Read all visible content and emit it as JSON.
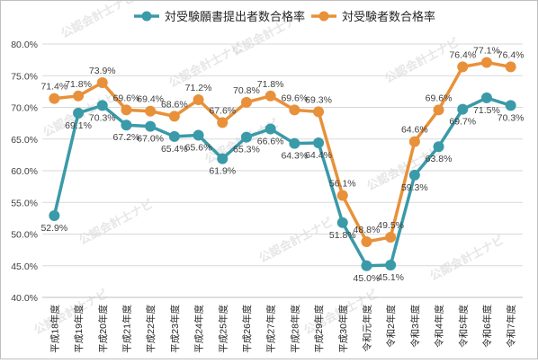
{
  "watermark": "公認会計士ナビ",
  "chart_data": {
    "type": "line",
    "categories": [
      "平成18年度",
      "平成19年度",
      "平成20年度",
      "平成21年度",
      "平成22年度",
      "平成23年度",
      "平成24年度",
      "平成25年度",
      "平成26年度",
      "平成27年度",
      "平成28年度",
      "平成29年度",
      "平成30年度",
      "令和元年度",
      "令和2年度",
      "令和3年度",
      "令和4年度",
      "令和5年度",
      "令和6年度",
      "令和7年度"
    ],
    "series": [
      {
        "name": "対受験願書提出者数合格率",
        "color": "#3a9aa8",
        "values": [
          52.9,
          69.1,
          70.3,
          67.2,
          67.0,
          65.4,
          65.6,
          61.9,
          65.3,
          66.6,
          64.3,
          64.4,
          51.8,
          45.0,
          45.1,
          59.3,
          63.8,
          69.7,
          71.5,
          70.3
        ],
        "labels": [
          "52.9%",
          "69.1%",
          "70.3%",
          "67.2%",
          "67.0%",
          "65.4%",
          "65.6%",
          "61.9%",
          "65.3%",
          "66.6%",
          "64.3%",
          "64.4%",
          "51.8%",
          "45.0%",
          "45.1%",
          "59.3%",
          "63.8%",
          "69.7%",
          "71.5%",
          "70.3%"
        ]
      },
      {
        "name": "対受験者数合格率",
        "color": "#e8913a",
        "values": [
          71.4,
          71.8,
          73.9,
          69.6,
          69.4,
          68.6,
          71.2,
          67.6,
          70.8,
          71.8,
          69.6,
          69.3,
          56.1,
          48.8,
          49.5,
          64.6,
          69.6,
          76.4,
          77.1,
          76.4
        ],
        "labels": [
          "71.4%",
          "71.8%",
          "73.9%",
          "69.6%",
          "69.4%",
          "68.6%",
          "71.2%",
          "67.6%",
          "70.8%",
          "71.8%",
          "69.6%",
          "69.3%",
          "56.1%",
          "48.8%",
          "49.5%",
          "64.6%",
          "69.6%",
          "76.4%",
          "77.1%",
          "76.4%"
        ]
      }
    ],
    "y_ticks": [
      40,
      45,
      50,
      55,
      60,
      65,
      70,
      75,
      80
    ],
    "y_tick_labels": [
      "40.0%",
      "45.0%",
      "50.0%",
      "55.0%",
      "60.0%",
      "65.0%",
      "70.0%",
      "75.0%",
      "80.0%"
    ],
    "ylim": [
      40,
      80
    ],
    "grid": true,
    "legend_position": "top-center",
    "title": "",
    "xlabel": "",
    "ylabel": ""
  }
}
